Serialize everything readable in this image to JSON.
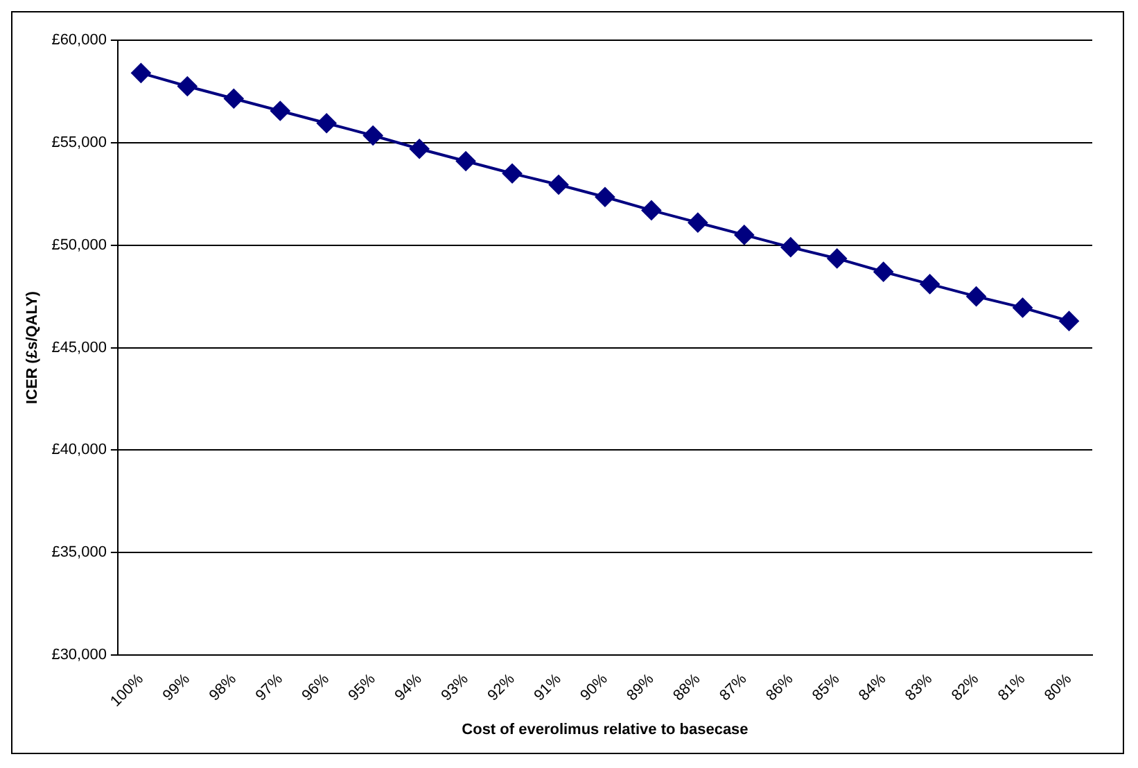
{
  "chart_data": {
    "type": "line",
    "xlabel": "Cost of everolimus relative to basecase",
    "ylabel": "ICER (£s/QALY)",
    "categories": [
      "100%",
      "99%",
      "98%",
      "97%",
      "96%",
      "95%",
      "94%",
      "93%",
      "92%",
      "91%",
      "90%",
      "89%",
      "88%",
      "87%",
      "86%",
      "85%",
      "84%",
      "83%",
      "82%",
      "81%",
      "80%"
    ],
    "series": [
      {
        "color": "#000080",
        "values": [
          58400,
          57750,
          57150,
          56550,
          55950,
          55350,
          54700,
          54100,
          53500,
          52950,
          52350,
          51700,
          51100,
          50500,
          49900,
          49350,
          48700,
          48100,
          47500,
          46950,
          46300
        ]
      }
    ],
    "ylim": [
      30000,
      60000
    ],
    "yticks": [
      {
        "value": 30000,
        "label": "£30,000"
      },
      {
        "value": 35000,
        "label": "£35,000"
      },
      {
        "value": 40000,
        "label": "£40,000"
      },
      {
        "value": 45000,
        "label": "£45,000"
      },
      {
        "value": 50000,
        "label": "£50,000"
      },
      {
        "value": 55000,
        "label": "£55,000"
      },
      {
        "value": 60000,
        "label": "£60,000"
      }
    ],
    "grid": "y",
    "legend": false,
    "marker": "diamond",
    "line_style": "solid"
  }
}
